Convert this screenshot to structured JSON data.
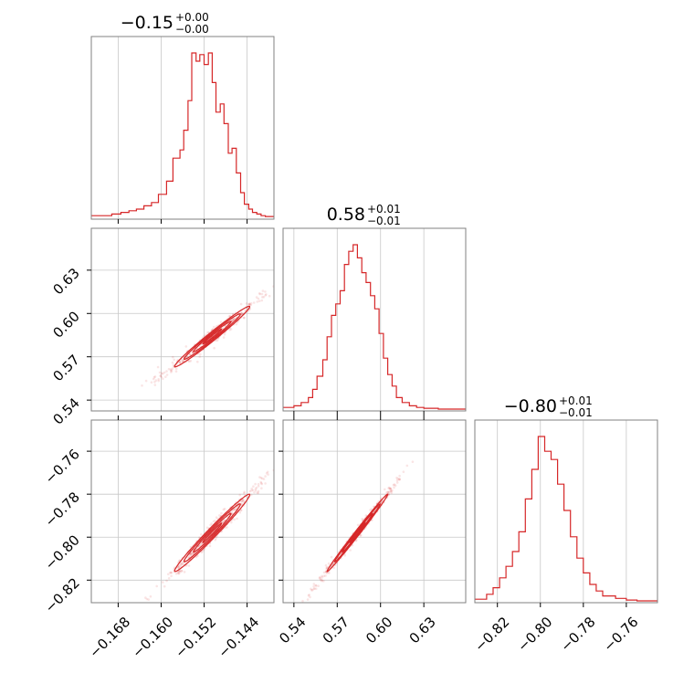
{
  "chart_data": {
    "type": "corner",
    "color": "#d62728",
    "grid": true,
    "parameters": [
      {
        "range": [
          -0.173,
          -0.139
        ],
        "ticks": [
          -0.168,
          -0.16,
          -0.152,
          -0.144
        ],
        "tick_labels": [
          "−0.168",
          "−0.160",
          "−0.152",
          "−0.144"
        ]
      },
      {
        "range": [
          0.5325,
          0.659
        ],
        "ticks": [
          0.54,
          0.57,
          0.6,
          0.63
        ],
        "tick_labels": [
          "0.54",
          "0.57",
          "0.60",
          "0.63"
        ]
      },
      {
        "range": [
          -0.8305,
          -0.7455
        ],
        "ticks": [
          -0.82,
          -0.8,
          -0.78,
          -0.76
        ],
        "tick_labels": [
          "−0.82",
          "−0.80",
          "−0.78",
          "−0.76"
        ]
      }
    ],
    "titles": [
      {
        "median": "−0.15",
        "plus": "+0.00",
        "minus": "−0.00"
      },
      {
        "median": "0.58",
        "plus": "+0.01",
        "minus": "−0.01"
      },
      {
        "median": "−0.80",
        "plus": "+0.01",
        "minus": "−0.01"
      }
    ],
    "histograms": [
      {
        "x": [
          -0.173,
          -0.1692,
          -0.1675,
          -0.166,
          -0.1646,
          -0.1632,
          -0.1618,
          -0.1605,
          -0.159,
          -0.1578,
          -0.1565,
          -0.1558,
          -0.155,
          -0.1543,
          -0.1535,
          -0.1528,
          -0.152,
          -0.1512,
          -0.1505,
          -0.1498,
          -0.149,
          -0.1483,
          -0.1475,
          -0.1468,
          -0.146,
          -0.1452,
          -0.1445,
          -0.1437,
          -0.143,
          -0.1422,
          -0.1414,
          -0.1406,
          -0.139
        ],
        "density": [
          0.01,
          0.02,
          0.03,
          0.04,
          0.05,
          0.07,
          0.09,
          0.14,
          0.22,
          0.36,
          0.41,
          0.53,
          0.71,
          1.0,
          0.95,
          0.99,
          0.93,
          1.0,
          0.82,
          0.64,
          0.69,
          0.57,
          0.39,
          0.42,
          0.27,
          0.15,
          0.08,
          0.05,
          0.03,
          0.02,
          0.01,
          0.005,
          0.0
        ]
      },
      {
        "x": [
          0.5325,
          0.54,
          0.545,
          0.55,
          0.553,
          0.556,
          0.56,
          0.563,
          0.566,
          0.569,
          0.572,
          0.575,
          0.578,
          0.581,
          0.584,
          0.587,
          0.59,
          0.593,
          0.596,
          0.599,
          0.602,
          0.605,
          0.608,
          0.611,
          0.615,
          0.62,
          0.625,
          0.63,
          0.64,
          0.659
        ],
        "density": [
          0.01,
          0.02,
          0.04,
          0.07,
          0.12,
          0.2,
          0.3,
          0.44,
          0.57,
          0.64,
          0.72,
          0.88,
          0.96,
          1.0,
          0.92,
          0.83,
          0.77,
          0.69,
          0.61,
          0.46,
          0.31,
          0.21,
          0.14,
          0.07,
          0.04,
          0.02,
          0.01,
          0.005,
          0.0,
          0.0
        ]
      },
      {
        "x": [
          -0.8305,
          -0.825,
          -0.822,
          -0.819,
          -0.816,
          -0.813,
          -0.81,
          -0.807,
          -0.804,
          -0.801,
          -0.798,
          -0.795,
          -0.792,
          -0.789,
          -0.786,
          -0.783,
          -0.78,
          -0.777,
          -0.774,
          -0.771,
          -0.765,
          -0.76,
          -0.755,
          -0.7455
        ],
        "density": [
          0.01,
          0.04,
          0.08,
          0.14,
          0.21,
          0.3,
          0.42,
          0.62,
          0.8,
          1.0,
          0.91,
          0.86,
          0.71,
          0.55,
          0.39,
          0.26,
          0.17,
          0.1,
          0.06,
          0.03,
          0.015,
          0.005,
          0.0,
          0.0
        ]
      }
    ],
    "pairs": [
      {
        "x_param": 0,
        "y_param": 1,
        "mean": [
          -0.1505,
          0.584
        ],
        "sd": [
          0.0035,
          0.0105
        ],
        "corr": 0.985
      },
      {
        "x_param": 0,
        "y_param": 2,
        "mean": [
          -0.1505,
          -0.798
        ],
        "sd": [
          0.0035,
          0.009
        ],
        "corr": 0.985
      },
      {
        "x_param": 1,
        "y_param": 2,
        "mean": [
          0.584,
          -0.798
        ],
        "sd": [
          0.0105,
          0.009
        ],
        "corr": 0.995
      }
    ]
  }
}
